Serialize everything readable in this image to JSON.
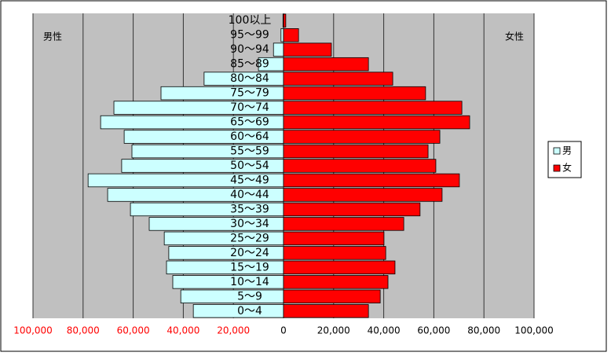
{
  "chart_data": {
    "type": "pyramid",
    "categories": [
      "0〜4",
      "5〜9",
      "10〜14",
      "15〜19",
      "20〜24",
      "25〜29",
      "30〜34",
      "35〜39",
      "40〜44",
      "45〜49",
      "50〜54",
      "55〜59",
      "60〜64",
      "65〜69",
      "70〜74",
      "75〜79",
      "80〜84",
      "85〜89",
      "90〜94",
      "95〜99",
      "100以上"
    ],
    "series": [
      {
        "name": "男",
        "color": "#ccffff",
        "values": [
          -36000,
          -41000,
          -44200,
          -46700,
          -45800,
          -47600,
          -53600,
          -61100,
          -70200,
          -78000,
          -64600,
          -60500,
          -63600,
          -73000,
          -67700,
          -48900,
          -31700,
          -10000,
          -4000,
          -1000,
          -200
        ]
      },
      {
        "name": "女",
        "color": "#ff0000",
        "values": [
          33900,
          38600,
          41700,
          44500,
          40800,
          40100,
          48000,
          54500,
          63300,
          70200,
          60800,
          57700,
          62400,
          74300,
          71200,
          56700,
          43600,
          33900,
          19100,
          6000,
          900
        ]
      }
    ],
    "xlim": [
      -100000,
      100000
    ],
    "xticks": [
      {
        "value": -100000,
        "label": "100,000"
      },
      {
        "value": -80000,
        "label": "80,000"
      },
      {
        "value": -60000,
        "label": "60,000"
      },
      {
        "value": -40000,
        "label": "40,000"
      },
      {
        "value": -20000,
        "label": "20,000"
      },
      0,
      {
        "value": 20000,
        "label": "20,000"
      },
      {
        "value": 40000,
        "label": "40,000"
      },
      {
        "value": 60000,
        "label": "60,000"
      },
      {
        "value": 80000,
        "label": "80,000"
      },
      {
        "value": 100000,
        "label": "100,000"
      }
    ],
    "negative_tick_color": "#ff0000",
    "grid": true,
    "legend": "right",
    "annotations": [
      "男性",
      "女性"
    ]
  }
}
